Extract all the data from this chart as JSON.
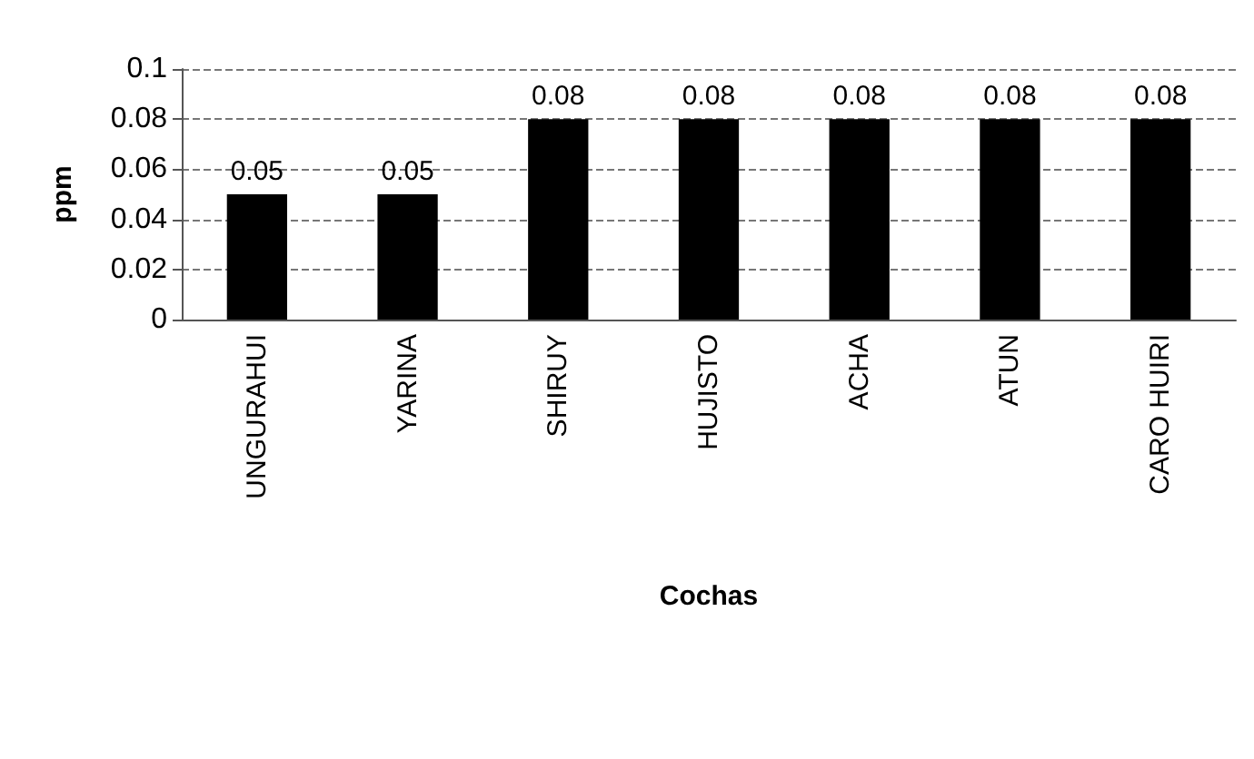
{
  "chart_data": {
    "type": "bar",
    "xlabel": "Cochas",
    "ylabel": "ppm",
    "categories": [
      "UNGURAHUI",
      "YARINA",
      "SHIRUY",
      "HUJISTO",
      "ACHA",
      "ATUN",
      "CARO HUIRI"
    ],
    "values": [
      0.05,
      0.05,
      0.08,
      0.08,
      0.08,
      0.08,
      0.08
    ],
    "color": "#000000",
    "ylim": [
      0,
      0.1
    ],
    "yticks": [
      0,
      0.02,
      0.04,
      0.06,
      0.08,
      0.1
    ],
    "grid": "y",
    "data_labels": true
  }
}
